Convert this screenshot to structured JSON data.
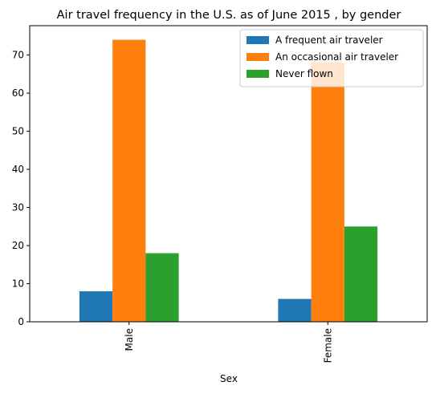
{
  "chart_data": {
    "type": "bar",
    "title": "Air travel frequency in the U.S. as of June 2015 , by gender",
    "xlabel": "Sex",
    "ylabel": "",
    "categories": [
      "Male",
      "Female"
    ],
    "series": [
      {
        "name": "A frequent air traveler",
        "values": [
          8,
          6
        ],
        "color": "#1f77b4"
      },
      {
        "name": "An occasional air traveler",
        "values": [
          74,
          68
        ],
        "color": "#ff7f0e"
      },
      {
        "name": "Never flown",
        "values": [
          18,
          25
        ],
        "color": "#2ca02c"
      }
    ],
    "ylim": [
      0,
      77.7
    ],
    "yticks": [
      0,
      10,
      20,
      30,
      40,
      50,
      60,
      70
    ],
    "grid": false,
    "legend_position": "top-right"
  }
}
